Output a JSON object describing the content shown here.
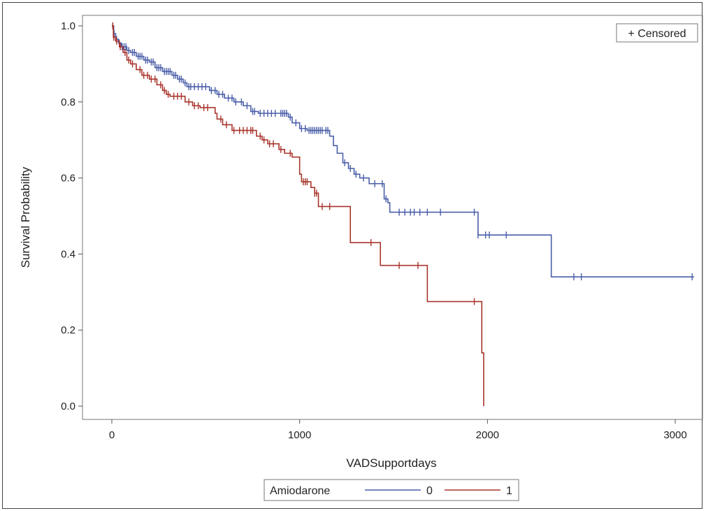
{
  "chart_data": {
    "type": "line",
    "subtype": "kaplan-meier-step",
    "xlabel": "VADSupportdays",
    "ylabel": "Survival Probability",
    "xlim": [
      -100,
      3150
    ],
    "ylim": [
      -0.04,
      1.04
    ],
    "xticks": [
      0,
      1000,
      2000,
      3000
    ],
    "yticks": [
      0.0,
      0.2,
      0.4,
      0.6,
      0.8,
      1.0
    ],
    "ytick_labels": [
      "0.0",
      "0.2",
      "0.4",
      "0.6",
      "0.8",
      "1.0"
    ],
    "grid": false,
    "inset_legend": {
      "label": "+ Censored",
      "placement": "top-right"
    },
    "legend": {
      "title": "Amiodarone",
      "placement": "bottom-center"
    },
    "series": [
      {
        "name": "0",
        "color": "#4a5ea8",
        "steps": [
          [
            0,
            1.0
          ],
          [
            10,
            0.98
          ],
          [
            20,
            0.965
          ],
          [
            35,
            0.955
          ],
          [
            50,
            0.945
          ],
          [
            80,
            0.935
          ],
          [
            100,
            0.93
          ],
          [
            130,
            0.92
          ],
          [
            170,
            0.91
          ],
          [
            200,
            0.905
          ],
          [
            230,
            0.89
          ],
          [
            270,
            0.88
          ],
          [
            320,
            0.87
          ],
          [
            350,
            0.86
          ],
          [
            380,
            0.85
          ],
          [
            400,
            0.84
          ],
          [
            450,
            0.84
          ],
          [
            520,
            0.83
          ],
          [
            560,
            0.82
          ],
          [
            600,
            0.81
          ],
          [
            650,
            0.8
          ],
          [
            700,
            0.79
          ],
          [
            740,
            0.775
          ],
          [
            780,
            0.77
          ],
          [
            940,
            0.76
          ],
          [
            960,
            0.745
          ],
          [
            1000,
            0.73
          ],
          [
            1040,
            0.725
          ],
          [
            1160,
            0.71
          ],
          [
            1180,
            0.685
          ],
          [
            1200,
            0.665
          ],
          [
            1230,
            0.64
          ],
          [
            1260,
            0.625
          ],
          [
            1290,
            0.61
          ],
          [
            1320,
            0.6
          ],
          [
            1370,
            0.585
          ],
          [
            1450,
            0.545
          ],
          [
            1470,
            0.535
          ],
          [
            1480,
            0.51
          ],
          [
            1950,
            0.45
          ],
          [
            2340,
            0.34
          ],
          [
            3100,
            0.34
          ]
        ],
        "censored_x": [
          5,
          12,
          25,
          40,
          55,
          65,
          75,
          90,
          110,
          120,
          140,
          150,
          160,
          180,
          190,
          210,
          220,
          240,
          250,
          260,
          280,
          290,
          300,
          310,
          330,
          340,
          360,
          370,
          390,
          410,
          420,
          440,
          460,
          480,
          500,
          530,
          550,
          570,
          590,
          620,
          640,
          660,
          690,
          720,
          750,
          760,
          790,
          810,
          830,
          850,
          870,
          900,
          910,
          920,
          930,
          950,
          980,
          1010,
          1030,
          1050,
          1060,
          1070,
          1080,
          1090,
          1100,
          1110,
          1120,
          1140,
          1150,
          1240,
          1270,
          1300,
          1340,
          1400,
          1440,
          1460,
          1530,
          1560,
          1590,
          1610,
          1640,
          1680,
          1750,
          1930,
          1950,
          1990,
          2010,
          2100,
          2460,
          2500,
          3090
        ]
      },
      {
        "name": "1",
        "color": "#a8342c",
        "steps": [
          [
            0,
            1.0
          ],
          [
            8,
            0.97
          ],
          [
            20,
            0.96
          ],
          [
            40,
            0.945
          ],
          [
            60,
            0.93
          ],
          [
            80,
            0.91
          ],
          [
            100,
            0.9
          ],
          [
            130,
            0.885
          ],
          [
            160,
            0.87
          ],
          [
            200,
            0.86
          ],
          [
            240,
            0.845
          ],
          [
            270,
            0.83
          ],
          [
            290,
            0.82
          ],
          [
            310,
            0.815
          ],
          [
            390,
            0.8
          ],
          [
            430,
            0.79
          ],
          [
            470,
            0.785
          ],
          [
            550,
            0.77
          ],
          [
            560,
            0.755
          ],
          [
            590,
            0.74
          ],
          [
            640,
            0.725
          ],
          [
            770,
            0.71
          ],
          [
            800,
            0.7
          ],
          [
            830,
            0.69
          ],
          [
            890,
            0.675
          ],
          [
            920,
            0.665
          ],
          [
            960,
            0.655
          ],
          [
            1000,
            0.61
          ],
          [
            1010,
            0.59
          ],
          [
            1060,
            0.575
          ],
          [
            1080,
            0.56
          ],
          [
            1100,
            0.525
          ],
          [
            1270,
            0.43
          ],
          [
            1430,
            0.37
          ],
          [
            1680,
            0.275
          ],
          [
            1970,
            0.14
          ],
          [
            1980,
            0.0
          ]
        ],
        "censored_x": [
          5,
          10,
          25,
          45,
          70,
          90,
          110,
          150,
          170,
          190,
          210,
          230,
          260,
          280,
          300,
          330,
          350,
          370,
          410,
          440,
          460,
          490,
          510,
          580,
          610,
          650,
          680,
          700,
          720,
          740,
          750,
          790,
          810,
          840,
          860,
          900,
          950,
          1020,
          1030,
          1040,
          1080,
          1090,
          1120,
          1160,
          1380,
          1530,
          1630,
          1930
        ]
      }
    ]
  }
}
